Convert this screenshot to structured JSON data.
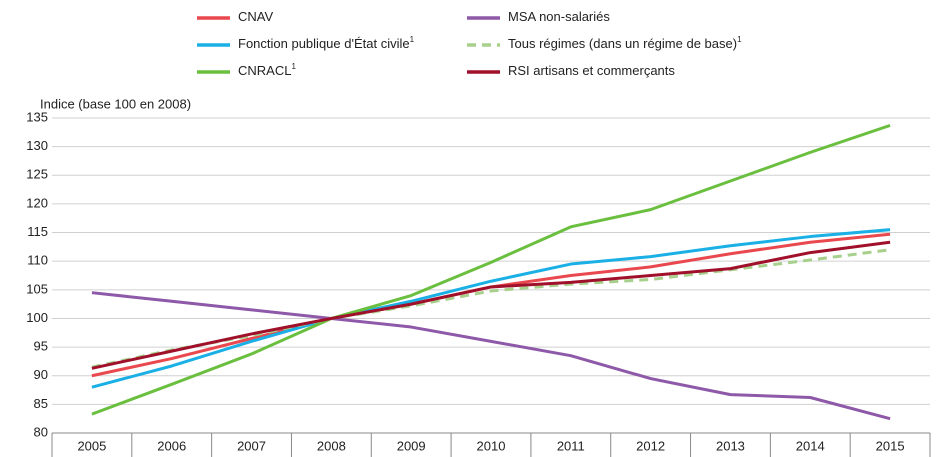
{
  "chart_data": {
    "type": "line",
    "y_label": "Indice (base 100 en 2008)",
    "categories": [
      "2005",
      "2006",
      "2007",
      "2008",
      "2009",
      "2010",
      "2011",
      "2012",
      "2013",
      "2014",
      "2015"
    ],
    "ylim": [
      80,
      135
    ],
    "yticks": [
      80,
      85,
      90,
      95,
      100,
      105,
      110,
      115,
      120,
      125,
      130,
      135
    ],
    "grid": true,
    "series": [
      {
        "name": "CNAV",
        "color": "#e9494e",
        "values": [
          90,
          93,
          96.5,
          100,
          102.5,
          105.5,
          107.5,
          109,
          111.3,
          113.3,
          114.7
        ]
      },
      {
        "name": "Fonction publique d'État civile",
        "note": "1",
        "color": "#1ab0e6",
        "values": [
          88,
          91.7,
          96,
          100,
          103,
          106.5,
          109.5,
          110.8,
          112.7,
          114.3,
          115.5
        ]
      },
      {
        "name": "CNRACL",
        "note": "1",
        "color": "#6abf3f",
        "values": [
          83.3,
          88.5,
          93.8,
          100,
          104,
          109.8,
          116,
          119,
          124,
          129,
          133.7
        ]
      },
      {
        "name": "MSA non-salariés",
        "color": "#8e59a8",
        "values": [
          104.5,
          103,
          101.5,
          100,
          98.5,
          96,
          93.5,
          89.5,
          86.7,
          86.2,
          82.5
        ]
      },
      {
        "name": "Tous régimes (dans un régime de base)",
        "note": "1",
        "color": "#a8d08d",
        "dash": true,
        "values": [
          91.5,
          94.5,
          97,
          100,
          102.2,
          104.8,
          106,
          106.8,
          108.5,
          110.2,
          112
        ]
      },
      {
        "name": "RSI artisans et commerçants",
        "color": "#a0102a",
        "values": [
          91.3,
          94.3,
          97.3,
          100,
          102.5,
          105.5,
          106.3,
          107.5,
          108.7,
          111.5,
          113.3
        ]
      }
    ]
  }
}
